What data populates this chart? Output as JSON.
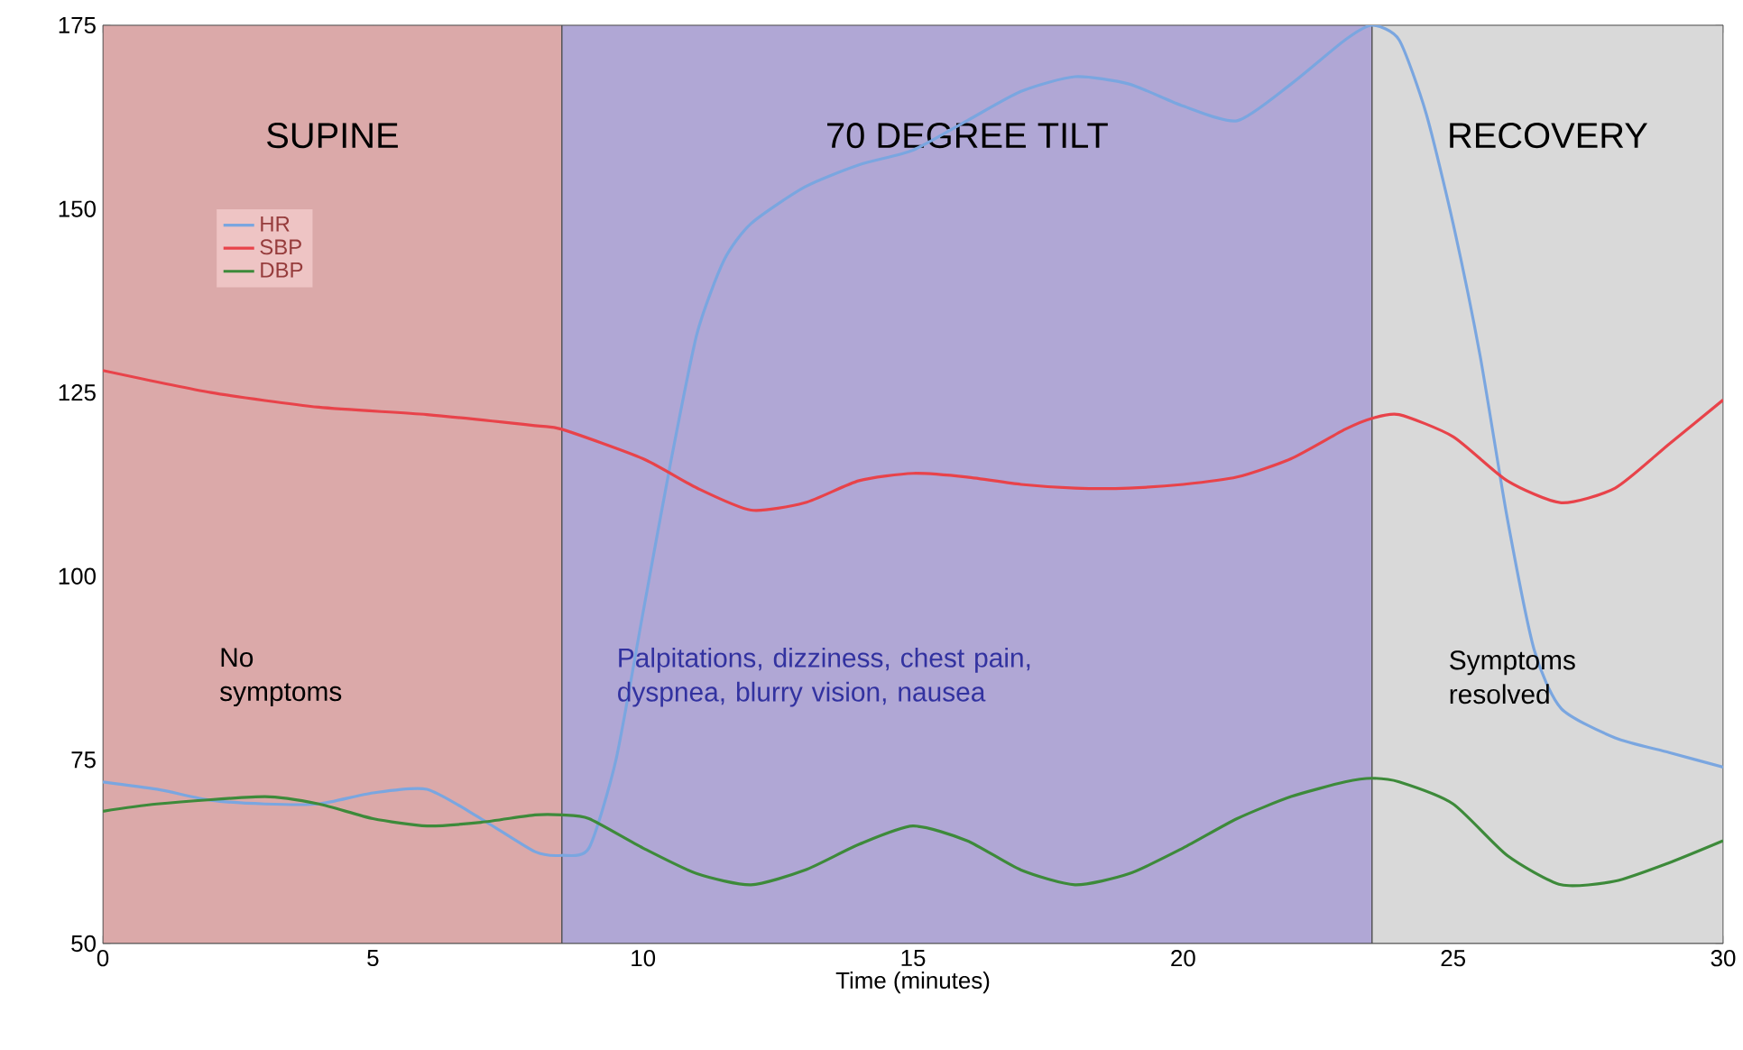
{
  "chart_data": {
    "type": "line",
    "xlabel": "Time (minutes)",
    "xlim": [
      0,
      30
    ],
    "ylim": [
      50,
      175
    ],
    "xticks": [
      0,
      5,
      10,
      15,
      20,
      25,
      30
    ],
    "yticks": [
      50,
      75,
      100,
      125,
      150,
      175
    ],
    "grid": "y",
    "legend": "top left",
    "marker": "none",
    "line_style": "solid",
    "bands": [
      {
        "axis": "x",
        "from": 0,
        "to": 8.5,
        "label": "SUPINE",
        "color": "#dba9a9"
      },
      {
        "axis": "x",
        "from": 8.5,
        "to": 23.5,
        "label": "70 DEGREE TILT",
        "color": "#b0a7d5"
      },
      {
        "axis": "x",
        "from": 23.5,
        "to": 30,
        "label": "RECOVERY",
        "color": "#d9d9d9"
      }
    ],
    "annotations": [
      "No symptoms",
      "Palpitations, dizziness, chest pain, dyspnea, blurry vision, nausea",
      "Symptoms resolved"
    ],
    "series": [
      {
        "name": "HR",
        "color": "#7aa6e0",
        "x": [
          0,
          1,
          2,
          3,
          4,
          5,
          6,
          7,
          8,
          8.5,
          9,
          9.5,
          10,
          10.5,
          11,
          11.5,
          12,
          13,
          14,
          15,
          16,
          17,
          18,
          19,
          20,
          21,
          22,
          23,
          23.5,
          24,
          24.5,
          25,
          25.5,
          26,
          26.5,
          27,
          28,
          29,
          30
        ],
        "values": [
          72,
          71,
          69.5,
          69,
          69,
          70.5,
          71,
          67,
          62.5,
          62,
          63,
          75,
          95,
          115,
          133,
          143,
          148,
          153,
          156,
          158,
          162,
          166,
          168,
          167,
          164,
          162,
          167,
          173,
          175,
          173,
          163,
          148,
          130,
          108,
          90,
          82,
          78,
          76,
          74
        ]
      },
      {
        "name": "SBP",
        "color": "#e8434a",
        "x": [
          0,
          2,
          4,
          6,
          8,
          8.5,
          10,
          11,
          12,
          13,
          14,
          15,
          16,
          17,
          18,
          19,
          20,
          21,
          22,
          23,
          23.5,
          24,
          25,
          26,
          27,
          28,
          29,
          30
        ],
        "values": [
          128,
          125,
          123,
          122,
          120.5,
          120,
          116,
          112,
          109,
          110,
          113,
          114,
          113.5,
          112.5,
          112,
          112,
          112.5,
          113.5,
          116,
          120,
          121.5,
          122,
          119,
          113,
          110,
          112,
          118,
          124
        ]
      },
      {
        "name": "DBP",
        "color": "#3d8a3a",
        "x": [
          0,
          1,
          3,
          4,
          5,
          6,
          7,
          8,
          8.5,
          9,
          10,
          11,
          12,
          13,
          14,
          15,
          16,
          17,
          18,
          19,
          20,
          21,
          22,
          23,
          23.5,
          24,
          25,
          26,
          27,
          28,
          29,
          30
        ],
        "values": [
          68,
          69,
          70,
          69,
          67,
          66,
          66.5,
          67.5,
          67.5,
          67,
          63,
          59.5,
          58,
          60,
          63.5,
          66,
          64,
          60,
          58,
          59.5,
          63,
          67,
          70,
          72,
          72.5,
          72,
          69,
          62,
          58,
          58.5,
          61,
          64
        ]
      }
    ]
  }
}
